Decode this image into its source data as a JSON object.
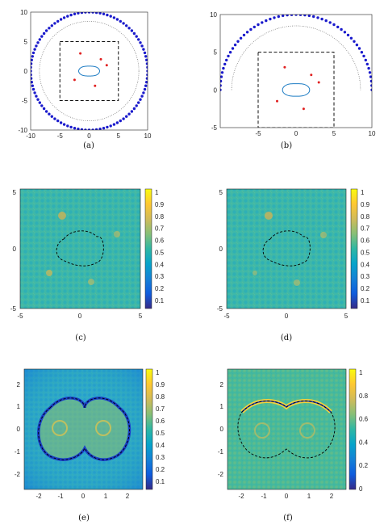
{
  "captions": [
    "(a)",
    "(b)",
    "(c)",
    "(d)",
    "(e)",
    "(f)"
  ],
  "colors": {
    "source_points": "#1a1acc",
    "scatterer_outline": "#1f7dc4",
    "point_targets": "#e02020",
    "dotted_circle": "#555555",
    "dashed_box": "#111111",
    "parula": [
      "#352a87",
      "#0f5cdd",
      "#1481d6",
      "#06a4ca",
      "#2eb7a4",
      "#87bf77",
      "#d1bb59",
      "#fec832",
      "#f9fb0e"
    ]
  },
  "panels": {
    "a": {
      "xticks": [
        "-10",
        "-5",
        "0",
        "5",
        "10"
      ],
      "yticks": [
        "10",
        "5",
        "0",
        "-5",
        "-10"
      ],
      "xlim": [
        -10,
        10
      ],
      "ylim": [
        -10,
        10
      ],
      "source_radius": 10,
      "source_count": 100,
      "dotted_radius": 8.5,
      "box": [
        -5,
        5
      ],
      "targets": [
        [
          -1.5,
          3
        ],
        [
          2,
          2
        ],
        [
          3,
          1
        ],
        [
          -2.5,
          -1.5
        ],
        [
          1,
          -2.5
        ]
      ]
    },
    "b": {
      "xticks": [
        "-5",
        "0",
        "5",
        "10"
      ],
      "yticks": [
        "10",
        "5",
        "0",
        "-5"
      ],
      "xlim": [
        -10,
        10
      ],
      "ylim": [
        -5,
        10
      ],
      "source_radius": 10,
      "source_count": 55,
      "dotted_radius": 8.5,
      "box": [
        -5,
        5
      ],
      "targets": [
        [
          -1.5,
          3
        ],
        [
          2,
          2
        ],
        [
          3,
          1
        ],
        [
          -2.5,
          -1.5
        ],
        [
          1,
          -2.5
        ]
      ]
    },
    "c": {
      "xticks": [
        "-5",
        "0",
        "5"
      ],
      "yticks": [
        "5",
        "0",
        "-5"
      ],
      "cbar_ticks": [
        "1",
        "0.9",
        "0.8",
        "0.7",
        "0.6",
        "0.5",
        "0.4",
        "0.3",
        "0.2",
        "0.1"
      ]
    },
    "d": {
      "xticks": [
        "-5",
        "0",
        "5"
      ],
      "yticks": [
        "5",
        "0",
        "-5"
      ],
      "cbar_ticks": [
        "1",
        "0.9",
        "0.8",
        "0.7",
        "0.6",
        "0.5",
        "0.4",
        "0.3",
        "0.2",
        "0.1"
      ]
    },
    "e": {
      "xticks": [
        "-2",
        "-1",
        "0",
        "1",
        "2"
      ],
      "yticks": [
        "2",
        "1",
        "0",
        "-1",
        "-2"
      ],
      "cbar_ticks": [
        "1",
        "0.9",
        "0.8",
        "0.7",
        "0.6",
        "0.5",
        "0.4",
        "0.3",
        "0.2",
        "0.1"
      ]
    },
    "f": {
      "xticks": [
        "-2",
        "-1",
        "0",
        "1",
        "2"
      ],
      "yticks": [
        "2",
        "1",
        "0",
        "-1",
        "-2"
      ],
      "cbar_ticks": [
        "1",
        "0.8",
        "0.6",
        "0.4",
        "0.2",
        "0"
      ]
    }
  }
}
